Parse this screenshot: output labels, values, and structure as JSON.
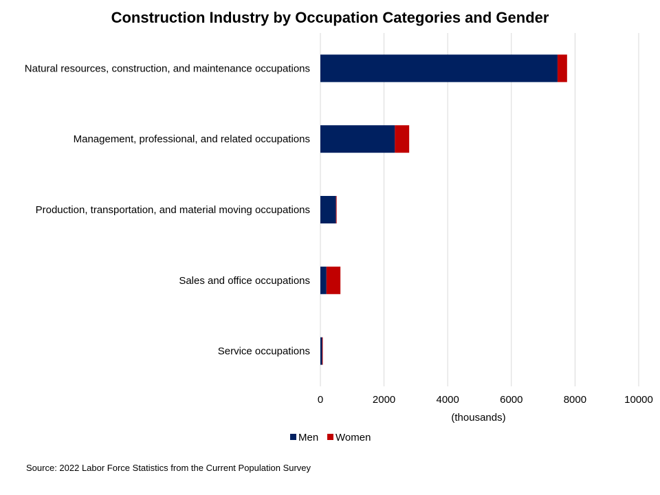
{
  "chart_data": {
    "type": "bar",
    "orientation": "horizontal",
    "stacked": true,
    "title": "Construction Industry by Occupation Categories and Gender",
    "xlabel": "(thousands)",
    "ylabel": "",
    "xlim": [
      0,
      10000
    ],
    "xticks": [
      0,
      2000,
      4000,
      6000,
      8000,
      10000
    ],
    "grid": true,
    "legend_position": "bottom",
    "categories": [
      "Natural resources, construction, and maintenance occupations",
      "Management, professional, and related occupations",
      "Production, transportation, and material moving occupations",
      "Sales and office occupations",
      "Service occupations"
    ],
    "series": [
      {
        "name": "Men",
        "color": "#002060",
        "values": [
          7450,
          2340,
          490,
          190,
          55
        ]
      },
      {
        "name": "Women",
        "color": "#c00000",
        "values": [
          300,
          450,
          20,
          440,
          20
        ]
      }
    ],
    "source": "Source: 2022 Labor Force Statistics from the Current Population Survey"
  }
}
